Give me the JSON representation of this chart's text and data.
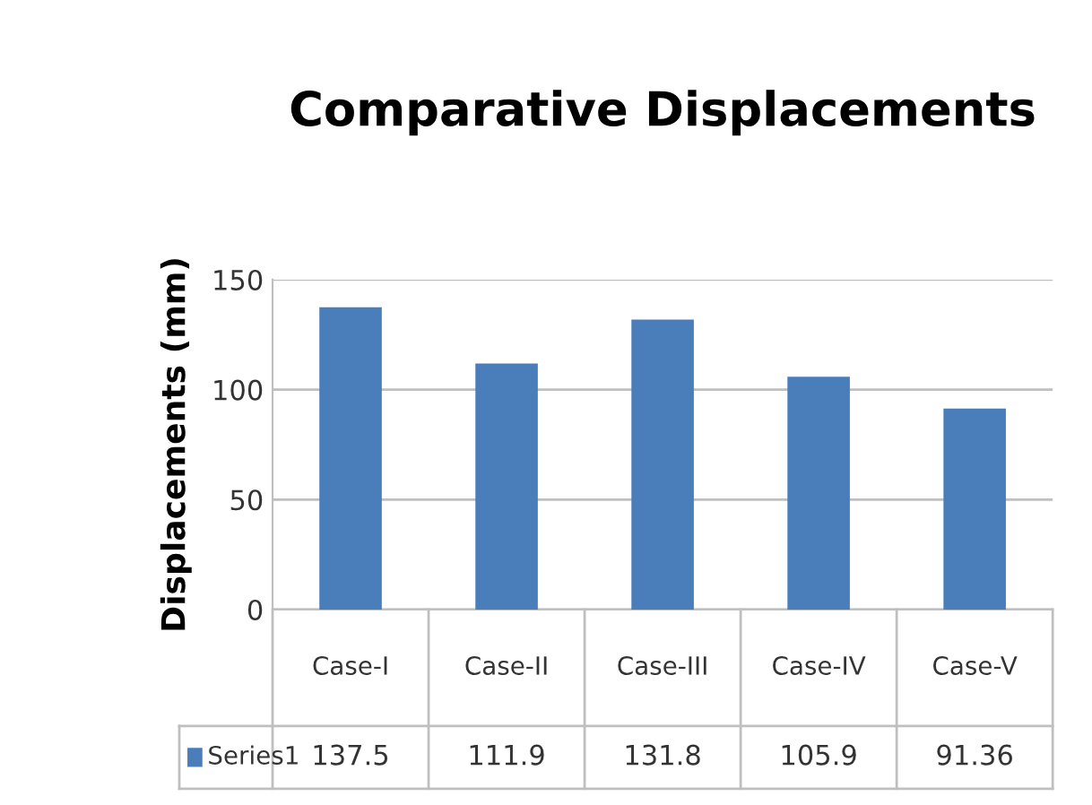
{
  "chart_data": {
    "type": "bar",
    "title": "Comparative Displacements",
    "ylabel": "Displacements (mm)",
    "categories": [
      "Case-I",
      "Case-II",
      "Case-III",
      "Case-IV",
      "Case-V"
    ],
    "series": [
      {
        "name": "Series1",
        "color": "#4a7ebb",
        "values": [
          137.5,
          111.9,
          131.8,
          105.9,
          91.36
        ]
      }
    ],
    "ylim": [
      0,
      150
    ],
    "yticks": [
      0,
      50,
      100,
      150
    ],
    "grid": "y",
    "data_labels": true,
    "legend": "bottom"
  }
}
